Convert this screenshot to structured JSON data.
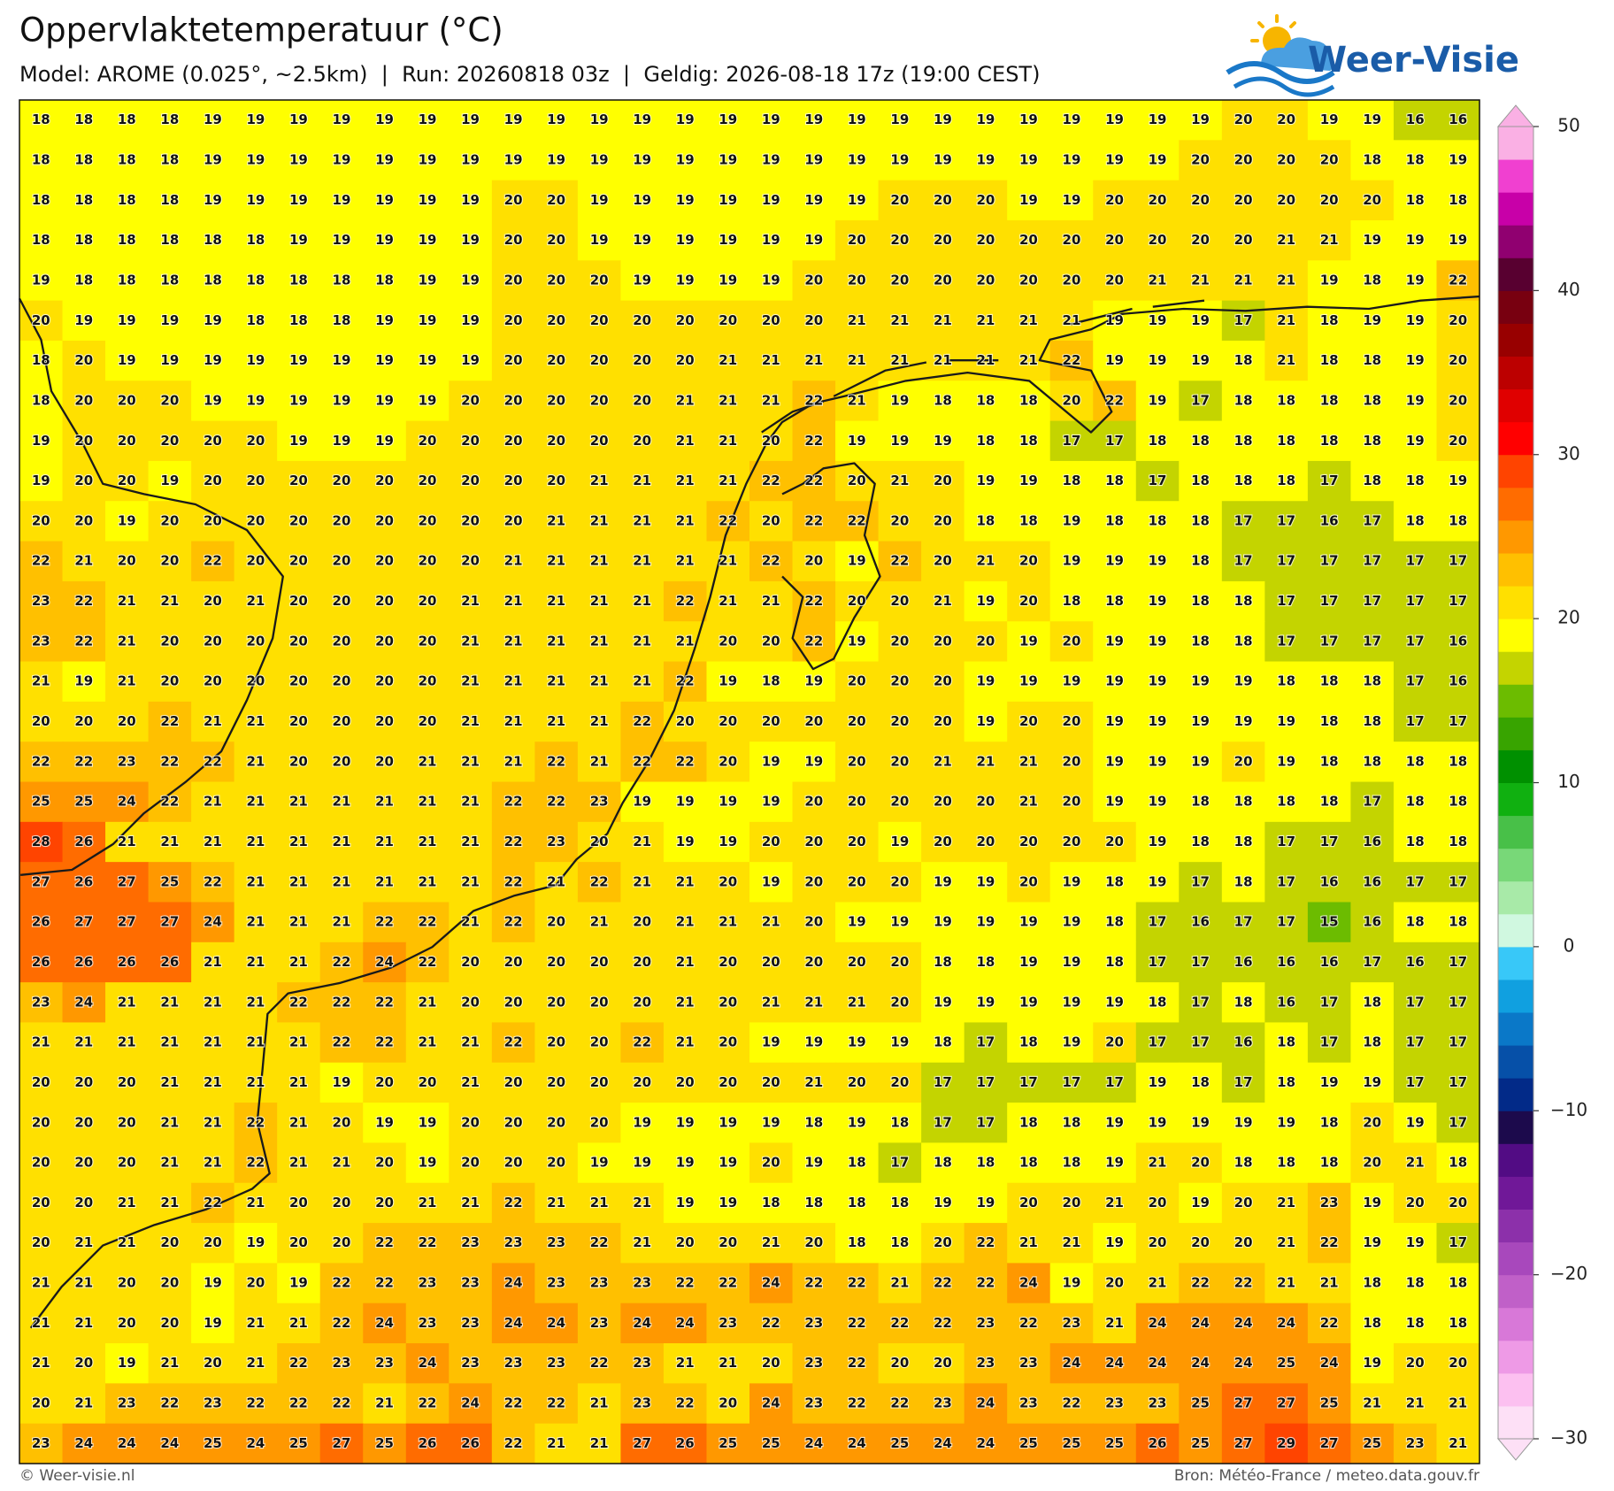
{
  "chart_data": {
    "type": "heatmap",
    "title": "Oppervlaktetemperatuur (°C)",
    "subtitle": "Model: AROME (0.025°, ~2.5km)  |  Run: 20260818 03z  |  Geldig: 2026-08-18 17z (19:00 CEST)",
    "values": [
      [
        18,
        18,
        18,
        18,
        19,
        19,
        19,
        19,
        19,
        19,
        19,
        19,
        19,
        19,
        19,
        19,
        19,
        19,
        19,
        19,
        19,
        19,
        19,
        19,
        19,
        19,
        19,
        19,
        20,
        20,
        19,
        19,
        16,
        16
      ],
      [
        18,
        18,
        18,
        18,
        19,
        19,
        19,
        19,
        19,
        19,
        19,
        19,
        19,
        19,
        19,
        19,
        19,
        19,
        19,
        19,
        19,
        19,
        19,
        19,
        19,
        19,
        19,
        20,
        20,
        20,
        20,
        18,
        18,
        19
      ],
      [
        18,
        18,
        18,
        18,
        19,
        19,
        19,
        19,
        19,
        19,
        19,
        20,
        20,
        19,
        19,
        19,
        19,
        19,
        19,
        19,
        20,
        20,
        20,
        19,
        19,
        20,
        20,
        20,
        20,
        20,
        20,
        20,
        18,
        18
      ],
      [
        18,
        18,
        18,
        18,
        18,
        18,
        19,
        19,
        19,
        19,
        19,
        20,
        20,
        19,
        19,
        19,
        19,
        19,
        19,
        20,
        20,
        20,
        20,
        20,
        20,
        20,
        20,
        20,
        20,
        21,
        21,
        19,
        19,
        19
      ],
      [
        19,
        18,
        18,
        18,
        18,
        18,
        18,
        18,
        18,
        19,
        19,
        20,
        20,
        20,
        19,
        19,
        19,
        19,
        20,
        20,
        20,
        20,
        20,
        20,
        20,
        20,
        21,
        21,
        21,
        21,
        19,
        18,
        19,
        22
      ],
      [
        20,
        19,
        19,
        19,
        19,
        18,
        18,
        18,
        19,
        19,
        19,
        20,
        20,
        20,
        20,
        20,
        20,
        20,
        20,
        21,
        21,
        21,
        21,
        21,
        21,
        19,
        19,
        19,
        17,
        21,
        18,
        19,
        19,
        20
      ],
      [
        18,
        20,
        19,
        19,
        19,
        19,
        19,
        19,
        19,
        19,
        19,
        20,
        20,
        20,
        20,
        20,
        21,
        21,
        21,
        21,
        21,
        21,
        21,
        21,
        22,
        19,
        19,
        19,
        18,
        21,
        18,
        18,
        19,
        20
      ],
      [
        18,
        20,
        20,
        20,
        19,
        19,
        19,
        19,
        19,
        19,
        20,
        20,
        20,
        20,
        20,
        21,
        21,
        21,
        22,
        21,
        19,
        18,
        18,
        18,
        20,
        22,
        19,
        17,
        18,
        18,
        18,
        18,
        19,
        20
      ],
      [
        19,
        20,
        20,
        20,
        20,
        20,
        19,
        19,
        19,
        20,
        20,
        20,
        20,
        20,
        20,
        21,
        21,
        20,
        22,
        19,
        19,
        19,
        18,
        18,
        17,
        17,
        18,
        18,
        18,
        18,
        18,
        18,
        19,
        20
      ],
      [
        19,
        20,
        20,
        19,
        20,
        20,
        20,
        20,
        20,
        20,
        20,
        20,
        20,
        21,
        21,
        21,
        21,
        22,
        22,
        20,
        21,
        20,
        19,
        19,
        18,
        18,
        17,
        18,
        18,
        18,
        17,
        18,
        18,
        19
      ],
      [
        20,
        20,
        19,
        20,
        20,
        20,
        20,
        20,
        20,
        20,
        20,
        20,
        21,
        21,
        21,
        21,
        22,
        20,
        22,
        22,
        20,
        20,
        18,
        18,
        19,
        18,
        18,
        18,
        17,
        17,
        16,
        17,
        18,
        18
      ],
      [
        22,
        21,
        20,
        20,
        22,
        20,
        20,
        20,
        20,
        20,
        20,
        21,
        21,
        21,
        21,
        21,
        21,
        22,
        20,
        19,
        22,
        20,
        21,
        20,
        19,
        19,
        19,
        18,
        17,
        17,
        17,
        17,
        17,
        17
      ],
      [
        23,
        22,
        21,
        21,
        20,
        21,
        20,
        20,
        20,
        20,
        21,
        21,
        21,
        21,
        21,
        22,
        21,
        21,
        22,
        20,
        20,
        21,
        19,
        20,
        18,
        18,
        19,
        18,
        18,
        17,
        17,
        17,
        17,
        17
      ],
      [
        23,
        22,
        21,
        20,
        20,
        20,
        20,
        20,
        20,
        20,
        21,
        21,
        21,
        21,
        21,
        21,
        20,
        20,
        22,
        19,
        20,
        20,
        20,
        19,
        20,
        19,
        19,
        18,
        18,
        17,
        17,
        17,
        17,
        16
      ],
      [
        21,
        19,
        21,
        20,
        20,
        20,
        20,
        20,
        20,
        20,
        21,
        21,
        21,
        21,
        21,
        22,
        19,
        18,
        19,
        20,
        20,
        20,
        19,
        19,
        19,
        19,
        19,
        19,
        19,
        18,
        18,
        18,
        17,
        16
      ],
      [
        20,
        20,
        20,
        22,
        21,
        21,
        20,
        20,
        20,
        20,
        21,
        21,
        21,
        21,
        22,
        20,
        20,
        20,
        20,
        20,
        20,
        20,
        19,
        20,
        20,
        19,
        19,
        19,
        19,
        19,
        18,
        18,
        17,
        17
      ],
      [
        22,
        22,
        23,
        22,
        22,
        21,
        20,
        20,
        20,
        21,
        21,
        21,
        22,
        21,
        22,
        22,
        20,
        19,
        19,
        20,
        20,
        21,
        21,
        21,
        20,
        19,
        19,
        19,
        20,
        19,
        18,
        18,
        18,
        18
      ],
      [
        25,
        25,
        24,
        22,
        21,
        21,
        21,
        21,
        21,
        21,
        21,
        22,
        22,
        23,
        19,
        19,
        19,
        19,
        20,
        20,
        20,
        20,
        20,
        21,
        20,
        19,
        19,
        18,
        18,
        18,
        18,
        17,
        18,
        18
      ],
      [
        28,
        26,
        21,
        21,
        21,
        21,
        21,
        21,
        21,
        21,
        21,
        22,
        23,
        20,
        21,
        19,
        19,
        20,
        20,
        20,
        19,
        20,
        20,
        20,
        20,
        20,
        19,
        18,
        18,
        17,
        17,
        16,
        18,
        18
      ],
      [
        27,
        26,
        27,
        25,
        22,
        21,
        21,
        21,
        21,
        21,
        21,
        22,
        21,
        22,
        21,
        21,
        20,
        19,
        20,
        20,
        20,
        19,
        19,
        20,
        19,
        18,
        19,
        17,
        18,
        17,
        16,
        16,
        17,
        17
      ],
      [
        26,
        27,
        27,
        27,
        24,
        21,
        21,
        21,
        22,
        22,
        21,
        22,
        20,
        21,
        20,
        21,
        21,
        21,
        20,
        19,
        19,
        19,
        19,
        19,
        19,
        18,
        17,
        16,
        17,
        17,
        15,
        16,
        18,
        18
      ],
      [
        26,
        26,
        26,
        26,
        21,
        21,
        21,
        22,
        24,
        22,
        20,
        20,
        20,
        20,
        20,
        21,
        20,
        20,
        20,
        20,
        20,
        18,
        18,
        19,
        19,
        18,
        17,
        17,
        16,
        16,
        16,
        17,
        16,
        17
      ],
      [
        23,
        24,
        21,
        21,
        21,
        21,
        22,
        22,
        22,
        21,
        20,
        20,
        20,
        20,
        20,
        21,
        20,
        21,
        21,
        21,
        20,
        19,
        19,
        19,
        19,
        19,
        18,
        17,
        18,
        16,
        17,
        18,
        17,
        17
      ],
      [
        21,
        21,
        21,
        21,
        21,
        21,
        21,
        22,
        22,
        21,
        21,
        22,
        20,
        20,
        22,
        21,
        20,
        19,
        19,
        19,
        19,
        18,
        17,
        18,
        19,
        20,
        17,
        17,
        16,
        18,
        17,
        18,
        17,
        17
      ],
      [
        20,
        20,
        20,
        21,
        21,
        21,
        21,
        19,
        20,
        20,
        21,
        20,
        20,
        20,
        20,
        20,
        20,
        20,
        21,
        20,
        20,
        17,
        17,
        17,
        17,
        17,
        19,
        18,
        17,
        18,
        19,
        19,
        17,
        17
      ],
      [
        20,
        20,
        20,
        21,
        21,
        22,
        21,
        20,
        19,
        19,
        20,
        20,
        20,
        20,
        19,
        19,
        19,
        19,
        18,
        19,
        18,
        17,
        17,
        18,
        18,
        19,
        19,
        19,
        19,
        19,
        18,
        20,
        19,
        17
      ],
      [
        20,
        20,
        20,
        21,
        21,
        22,
        21,
        21,
        20,
        19,
        20,
        20,
        20,
        19,
        19,
        19,
        19,
        20,
        19,
        18,
        17,
        18,
        18,
        18,
        18,
        19,
        21,
        20,
        18,
        18,
        18,
        20,
        21,
        18
      ],
      [
        20,
        20,
        21,
        21,
        22,
        21,
        20,
        20,
        20,
        21,
        21,
        22,
        21,
        21,
        21,
        19,
        19,
        18,
        18,
        18,
        18,
        19,
        19,
        20,
        20,
        21,
        20,
        19,
        20,
        21,
        23,
        19,
        20,
        20
      ],
      [
        20,
        21,
        21,
        20,
        20,
        19,
        20,
        20,
        22,
        22,
        23,
        23,
        23,
        22,
        21,
        20,
        20,
        21,
        20,
        18,
        18,
        20,
        22,
        21,
        21,
        19,
        20,
        20,
        20,
        21,
        22,
        19,
        19,
        17
      ],
      [
        21,
        21,
        20,
        20,
        19,
        20,
        19,
        22,
        22,
        23,
        23,
        24,
        23,
        23,
        23,
        22,
        22,
        24,
        22,
        22,
        21,
        22,
        22,
        24,
        19,
        20,
        21,
        22,
        22,
        21,
        21,
        18,
        18,
        18
      ],
      [
        21,
        21,
        20,
        20,
        19,
        21,
        21,
        22,
        24,
        23,
        23,
        24,
        24,
        23,
        24,
        24,
        23,
        22,
        23,
        22,
        22,
        22,
        23,
        22,
        23,
        21,
        24,
        24,
        24,
        24,
        22,
        18,
        18,
        18
      ],
      [
        21,
        20,
        19,
        21,
        20,
        21,
        22,
        23,
        23,
        24,
        23,
        23,
        23,
        22,
        23,
        21,
        21,
        20,
        23,
        22,
        20,
        20,
        23,
        23,
        24,
        24,
        24,
        24,
        24,
        25,
        24,
        19,
        20,
        20
      ],
      [
        20,
        21,
        23,
        22,
        23,
        22,
        22,
        22,
        21,
        22,
        24,
        22,
        22,
        21,
        23,
        22,
        20,
        24,
        23,
        22,
        22,
        23,
        24,
        23,
        22,
        23,
        23,
        25,
        27,
        27,
        25,
        21,
        21,
        21
      ],
      [
        23,
        24,
        24,
        24,
        25,
        24,
        25,
        27,
        25,
        26,
        26,
        22,
        21,
        21,
        27,
        26,
        25,
        25,
        24,
        24,
        25,
        24,
        24,
        25,
        25,
        25,
        26,
        25,
        27,
        29,
        27,
        25,
        23,
        21
      ]
    ],
    "colorbar": {
      "lim": [
        -30,
        50
      ],
      "ticks": [
        50,
        40,
        30,
        20,
        10,
        0,
        {
          "value": -10,
          "label": "−10"
        },
        {
          "value": -20,
          "label": "−20"
        },
        {
          "value": -30,
          "label": "−30"
        }
      ],
      "colors": [
        "#fde0f6",
        "#fcc0f0",
        "#ee9ae6",
        "#d878d8",
        "#c060c8",
        "#a848bc",
        "#8c30aa",
        "#701898",
        "#520c84",
        "#1c0a4c",
        "#022a88",
        "#0650a8",
        "#0a78c8",
        "#10a0e0",
        "#38c8f8",
        "#d0f8e0",
        "#a8eaa8",
        "#78d878",
        "#48c048",
        "#10b010",
        "#009000",
        "#38a400",
        "#6cbc00",
        "#c4d400",
        "#ffff00",
        "#ffe000",
        "#ffc000",
        "#ff9800",
        "#ff6c00",
        "#ff4400",
        "#ff0000",
        "#e00000",
        "#bc0000",
        "#980000",
        "#780010",
        "#580030",
        "#900070",
        "#c800a8",
        "#f040d0",
        "#fab0e4"
      ]
    },
    "logo": "Weer-Visie",
    "credit": "© Weer-visie.nl",
    "source": "Bron: Météo-France / meteo.data.gouv.fr"
  }
}
